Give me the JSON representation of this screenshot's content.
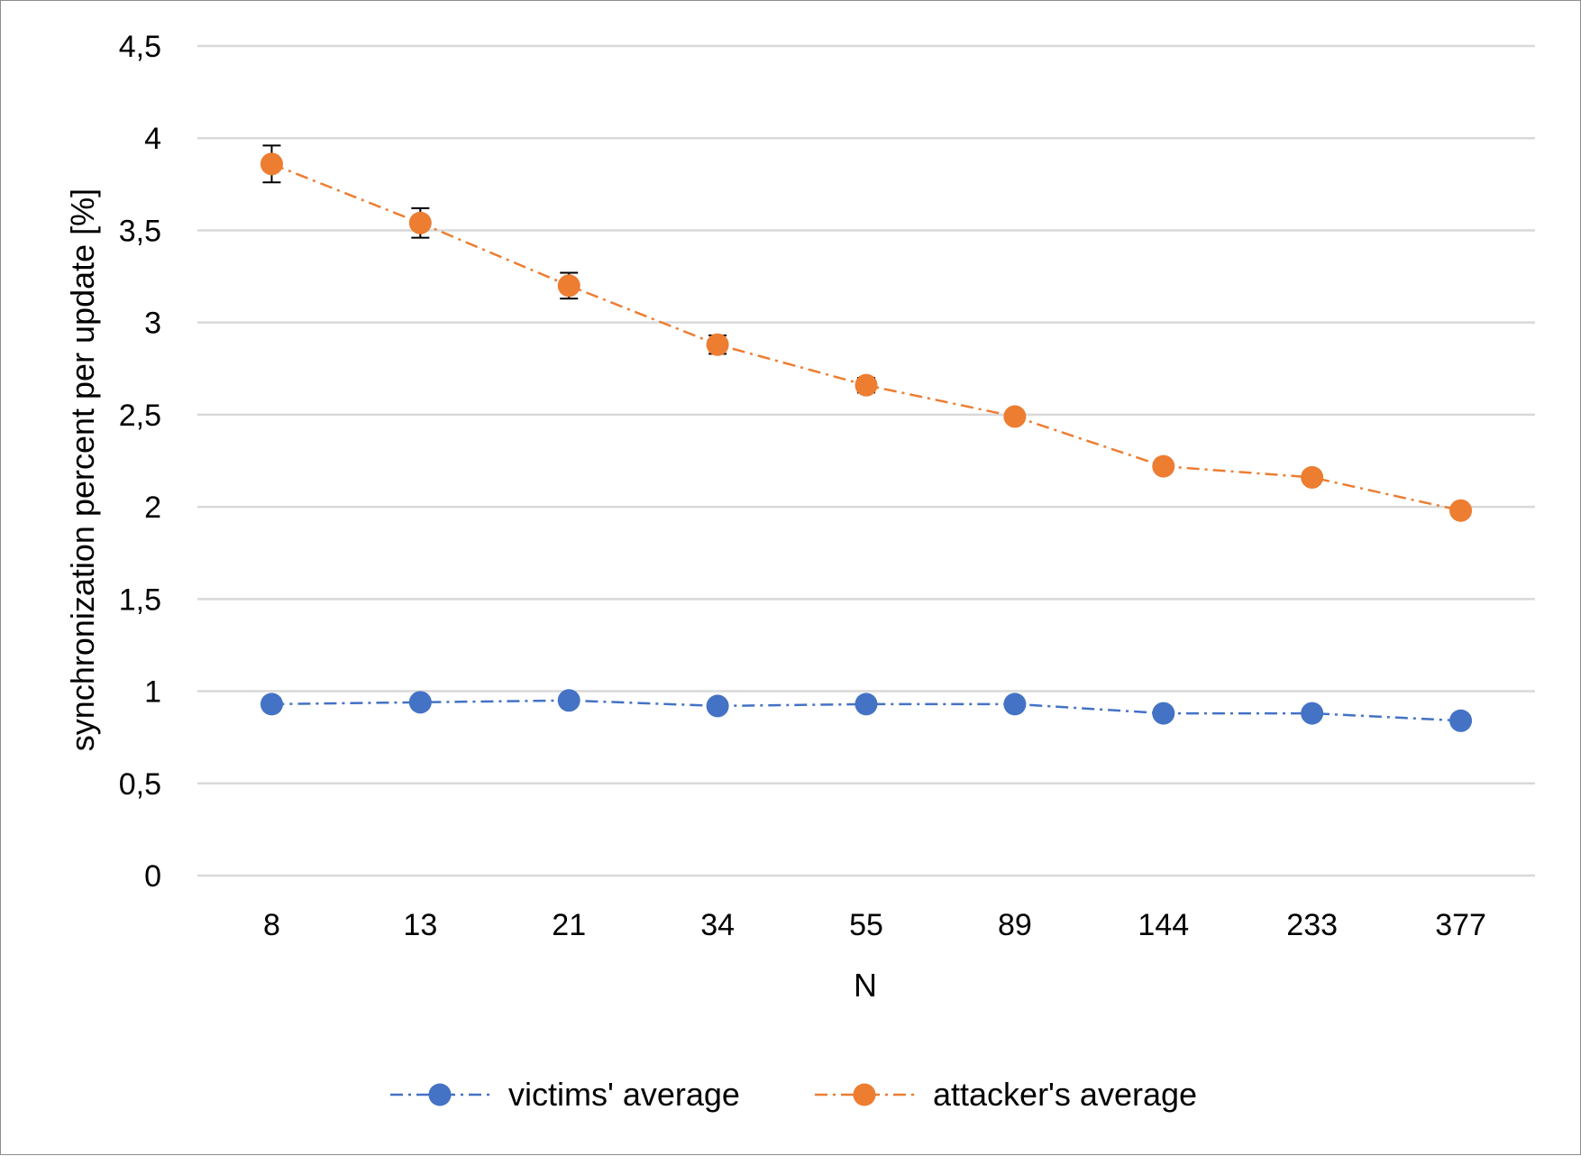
{
  "chart_data": {
    "type": "line",
    "title": "",
    "xlabel": "N",
    "ylabel": "synchronization percent per update [%]",
    "categories": [
      "8",
      "13",
      "21",
      "34",
      "55",
      "89",
      "144",
      "233",
      "377"
    ],
    "ylim": [
      0,
      4.5
    ],
    "yticks": [
      {
        "value": 0,
        "label": "0"
      },
      {
        "value": 0.5,
        "label": "0,5"
      },
      {
        "value": 1,
        "label": "1"
      },
      {
        "value": 1.5,
        "label": "1,5"
      },
      {
        "value": 2,
        "label": "2"
      },
      {
        "value": 2.5,
        "label": "2,5"
      },
      {
        "value": 3,
        "label": "3"
      },
      {
        "value": 3.5,
        "label": "3,5"
      },
      {
        "value": 4,
        "label": "4"
      },
      {
        "value": 4.5,
        "label": "4,5"
      }
    ],
    "grid": true,
    "legend_position": "bottom",
    "series": [
      {
        "name": "victims' average",
        "color": "#4472C4",
        "line_style": "dash-dot",
        "values": [
          0.93,
          0.94,
          0.95,
          0.92,
          0.93,
          0.93,
          0.88,
          0.88,
          0.84
        ],
        "error": [
          0,
          0,
          0,
          0,
          0,
          0,
          0,
          0,
          0
        ]
      },
      {
        "name": "attacker's average",
        "color": "#ED7D31",
        "line_style": "dash-dot",
        "values": [
          3.86,
          3.54,
          3.2,
          2.88,
          2.66,
          2.49,
          2.22,
          2.16,
          1.98
        ],
        "error": [
          0.1,
          0.08,
          0.07,
          0.05,
          0.04,
          0.03,
          0,
          0,
          0
        ]
      }
    ]
  }
}
